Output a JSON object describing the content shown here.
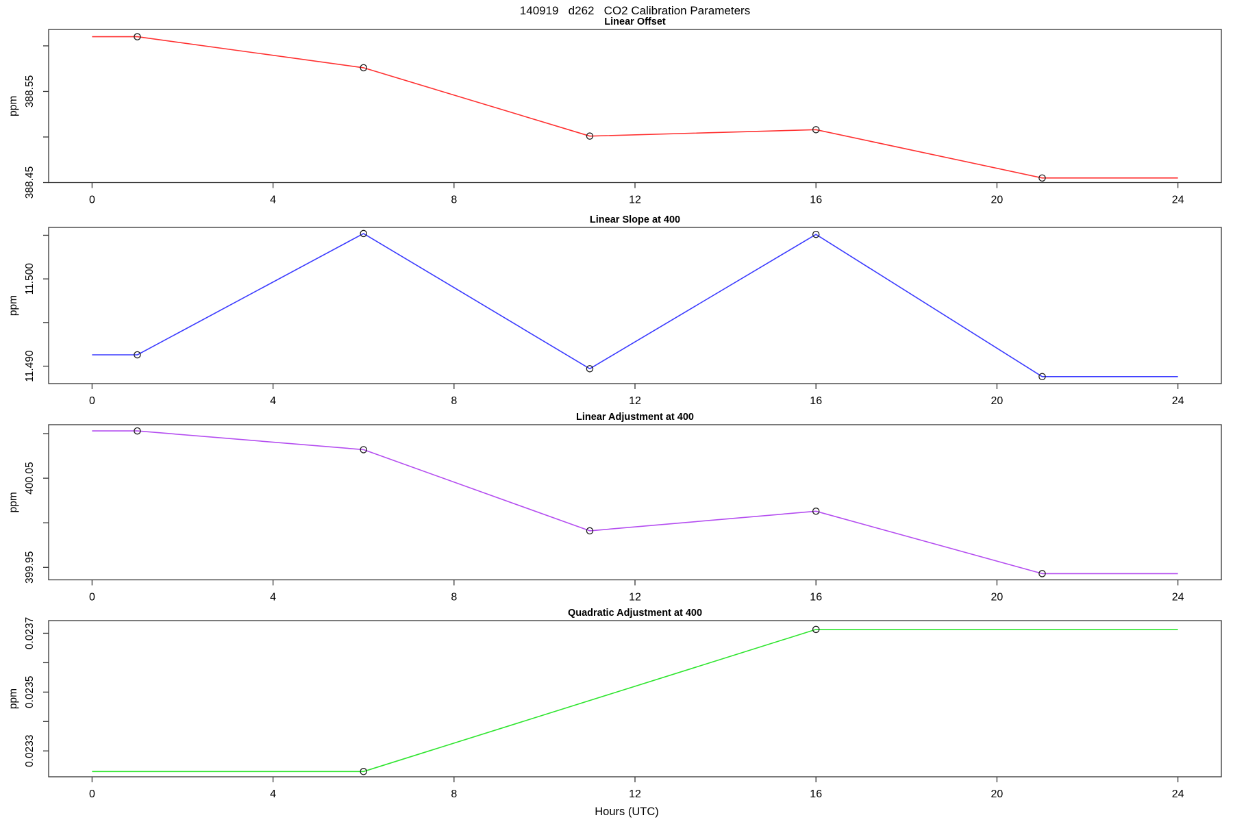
{
  "main_title": "140919   d262   CO2 Calibration Parameters",
  "x_axis": {
    "label": "Hours (UTC)",
    "ticks": [
      0,
      4,
      8,
      12,
      16,
      20,
      24
    ],
    "tick_labels": [
      "0",
      "4",
      "8",
      "12",
      "16",
      "20",
      "24"
    ],
    "xlim": [
      -0.96,
      24.96
    ]
  },
  "chart_data": [
    {
      "type": "line",
      "title": "Linear Offset",
      "ylabel": "ppm",
      "color": "#ff3030",
      "marker_color": "#1a1a1a",
      "ylim": [
        388.45,
        388.618
      ],
      "yticks": [
        388.45,
        388.5,
        388.55,
        388.6
      ],
      "ytick_labels": [
        "388.45",
        "",
        "388.55",
        ""
      ],
      "points": {
        "x": [
          1,
          6,
          11,
          16,
          21
        ],
        "y": [
          388.61,
          388.576,
          388.501,
          388.508,
          388.455
        ]
      },
      "line": {
        "x": [
          0,
          1,
          6,
          11,
          16,
          21,
          24
        ],
        "y": [
          388.61,
          388.61,
          388.576,
          388.501,
          388.508,
          388.455,
          388.455
        ]
      },
      "grid": false,
      "legend": "none"
    },
    {
      "type": "line",
      "title": "Linear Slope at 400",
      "ylabel": "ppm",
      "color": "#3b3bff",
      "marker_color": "#1a1a1a",
      "ylim": [
        11.488,
        11.5059
      ],
      "yticks": [
        11.49,
        11.495,
        11.5,
        11.505
      ],
      "ytick_labels": [
        "11.490",
        "",
        "11.500",
        ""
      ],
      "points": {
        "x": [
          1,
          6,
          11,
          16,
          21
        ],
        "y": [
          11.4913,
          11.5052,
          11.4897,
          11.5051,
          11.4888
        ]
      },
      "line": {
        "x": [
          0,
          1,
          6,
          11,
          16,
          21,
          24
        ],
        "y": [
          11.4913,
          11.4913,
          11.5052,
          11.4897,
          11.5051,
          11.4888,
          11.4888
        ]
      },
      "grid": false,
      "legend": "none"
    },
    {
      "type": "line",
      "title": "Linear Adjustment at 400",
      "ylabel": "ppm",
      "color": "#b44df0",
      "marker_color": "#1a1a1a",
      "ylim": [
        399.936,
        400.11
      ],
      "yticks": [
        399.95,
        400.0,
        400.05,
        400.1
      ],
      "ytick_labels": [
        "399.95",
        "",
        "400.05",
        ""
      ],
      "points": {
        "x": [
          1,
          6,
          11,
          16,
          21
        ],
        "y": [
          400.103,
          400.082,
          399.991,
          400.013,
          399.943
        ]
      },
      "line": {
        "x": [
          0,
          1,
          6,
          11,
          16,
          21,
          24
        ],
        "y": [
          400.103,
          400.103,
          400.082,
          399.991,
          400.013,
          399.943,
          399.943
        ]
      },
      "grid": false,
      "legend": "none"
    },
    {
      "type": "line",
      "title": "Quadratic Adjustment at 400",
      "ylabel": "ppm",
      "color": "#2ee52e",
      "marker_color": "#1a1a1a",
      "ylim": [
        0.023212,
        0.023743
      ],
      "yticks": [
        0.0233,
        0.0234,
        0.0235,
        0.0236,
        0.0237
      ],
      "ytick_labels": [
        "0.0233",
        "",
        "0.0235",
        "",
        "0.0237"
      ],
      "points": {
        "x": [
          6,
          16
        ],
        "y": [
          0.02323,
          0.023713
        ]
      },
      "line": {
        "x": [
          0,
          6,
          16,
          24
        ],
        "y": [
          0.02323,
          0.02323,
          0.023713,
          0.023713
        ]
      },
      "grid": false,
      "legend": "none"
    }
  ]
}
